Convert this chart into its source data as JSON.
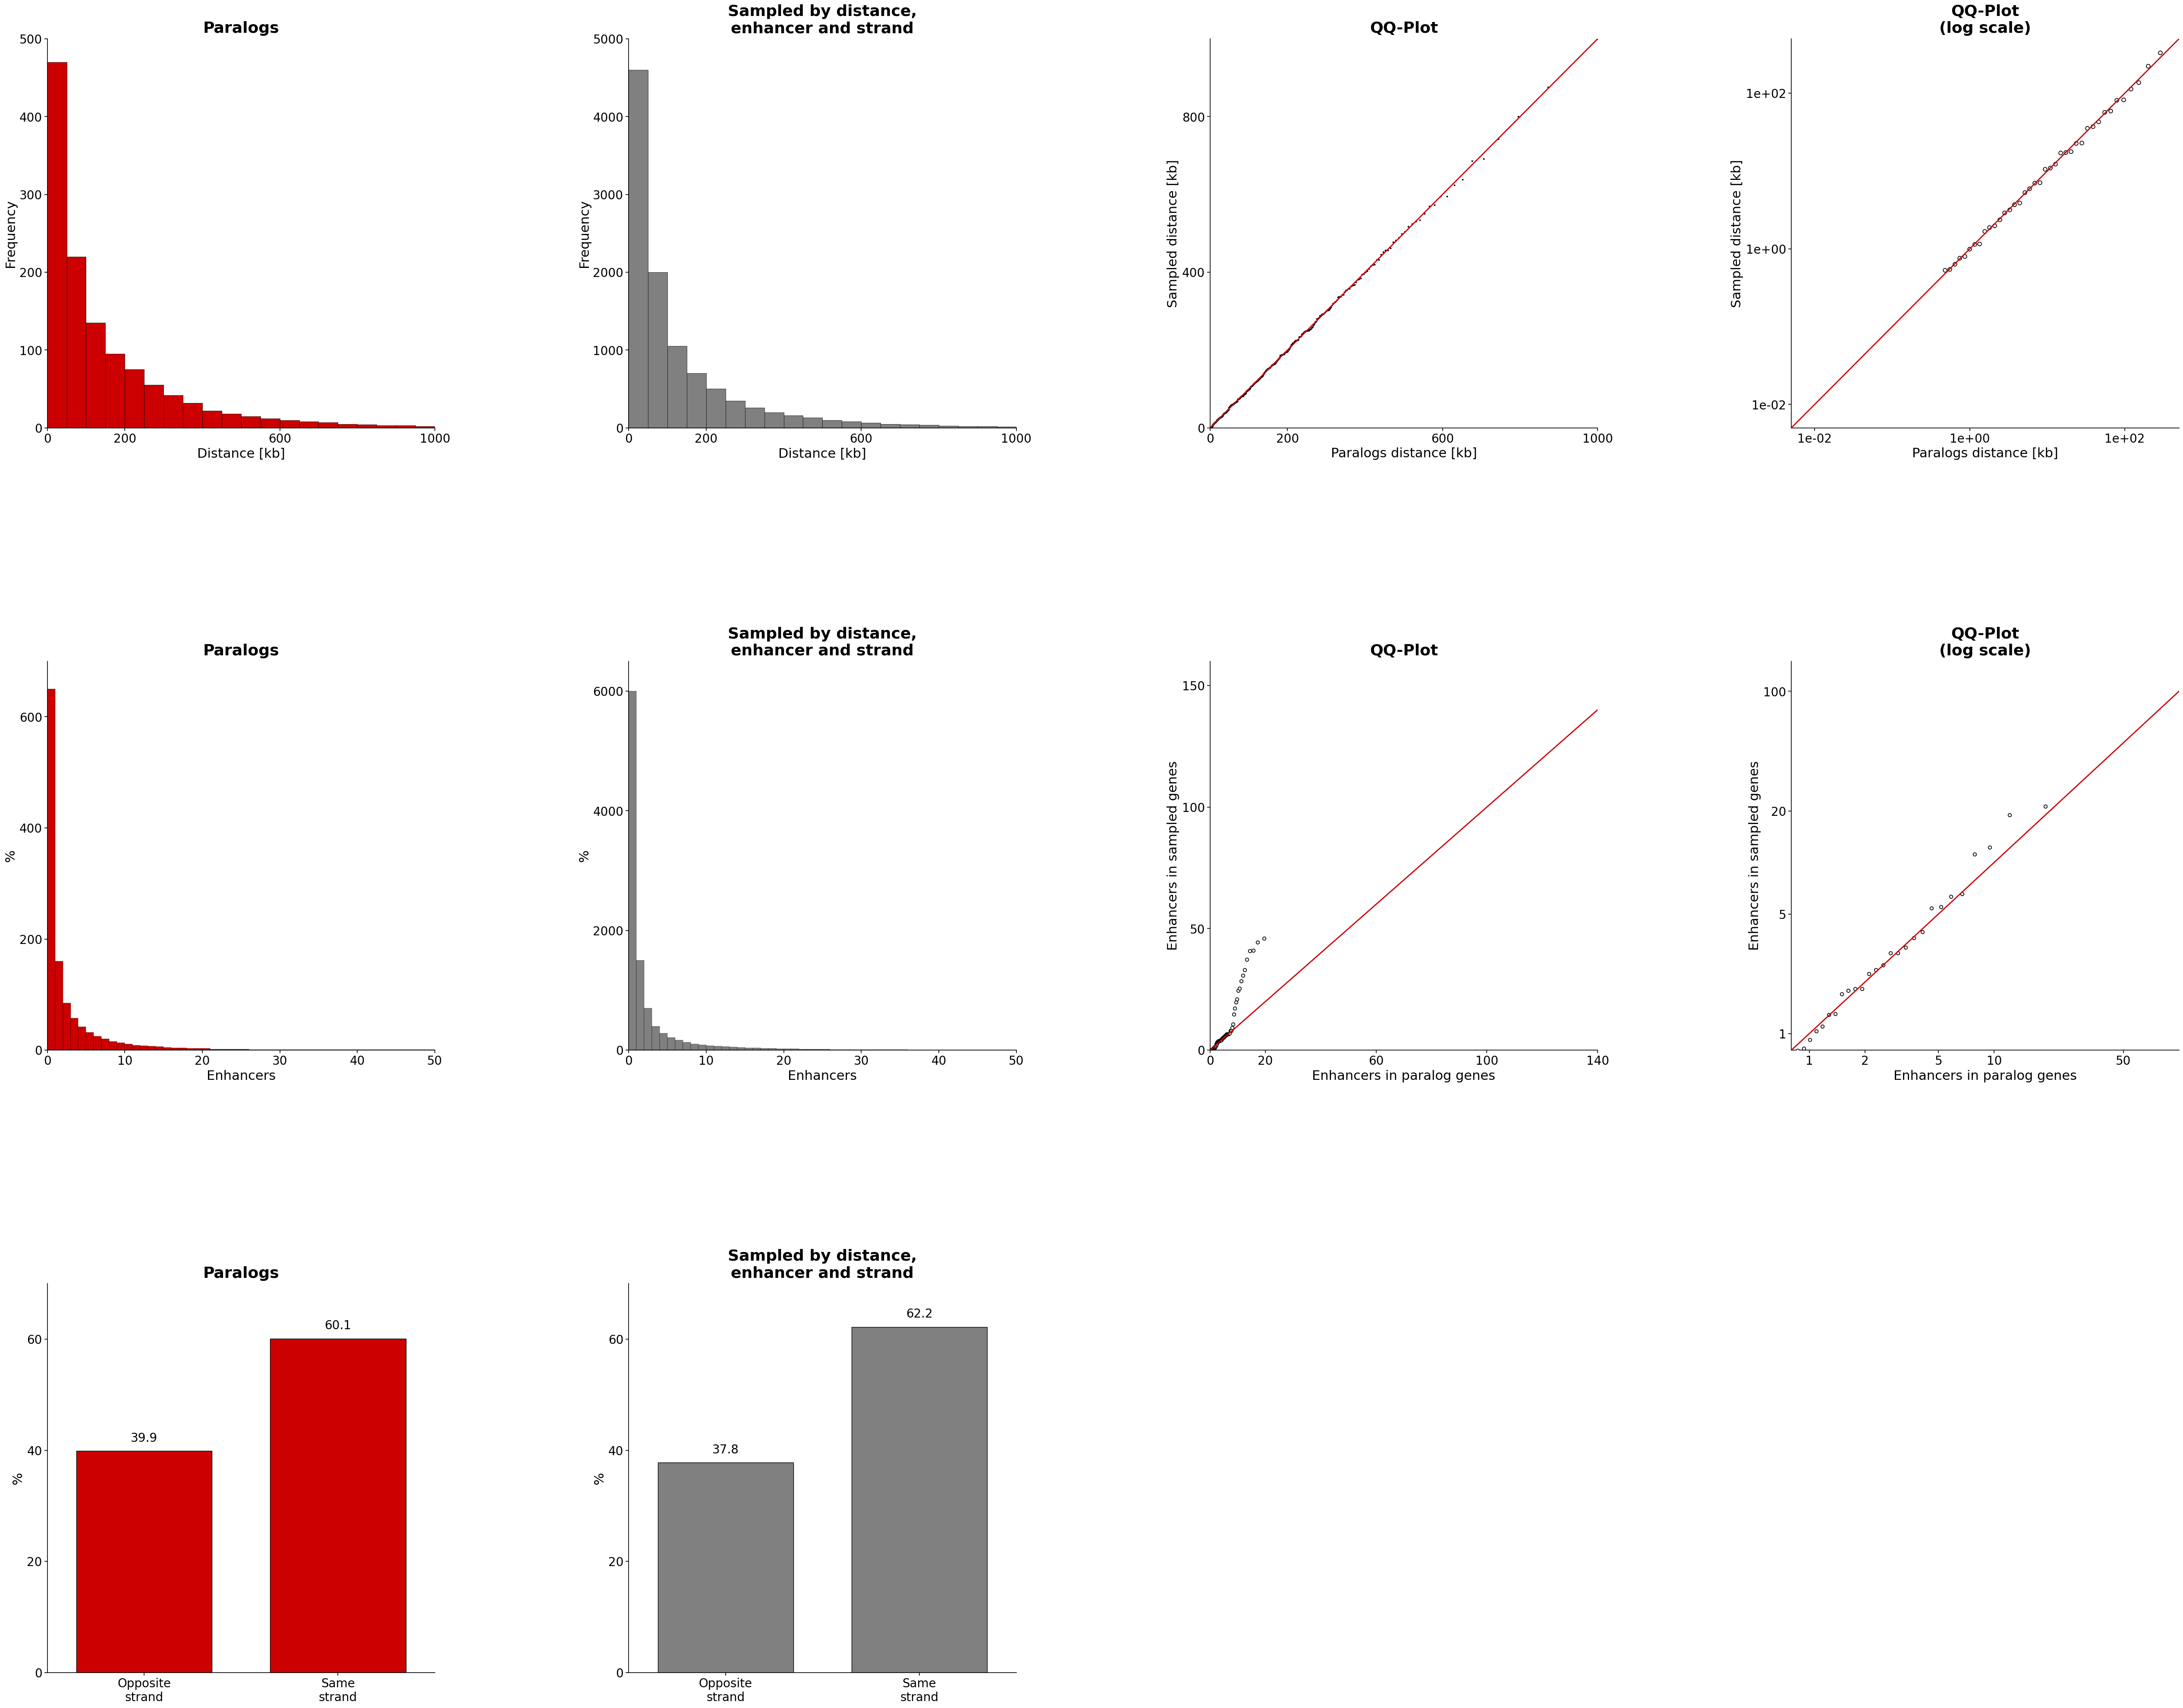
{
  "fig_width": 54.0,
  "fig_height": 40.5,
  "bg_color": "#ffffff",
  "row1_col1_title": "Paralogs",
  "row1_col2_title": "Sampled by distance,\nenhancer and strand",
  "row1_col3_title": "QQ-Plot",
  "row1_col4_title": "QQ-Plot\n(log scale)",
  "row2_col1_title": "Paralogs",
  "row2_col2_title": "Sampled by distance,\nenhancer and strand",
  "row2_col3_title": "QQ-Plot",
  "row2_col4_title": "QQ-Plot\n(log scale)",
  "row3_col1_title": "Paralogs",
  "row3_col2_title": "Sampled by distance,\nenhancer and strand",
  "dist_paralog_hist_values": [
    470,
    220,
    135,
    95,
    75,
    55,
    42,
    32,
    22,
    18,
    15,
    12,
    10,
    8,
    7,
    5,
    4,
    3,
    3,
    2
  ],
  "dist_paralog_hist_edges": [
    0,
    50,
    100,
    150,
    200,
    250,
    300,
    350,
    400,
    450,
    500,
    550,
    600,
    650,
    700,
    750,
    800,
    850,
    900,
    950,
    1000
  ],
  "dist_paralog_color": "#cc0000",
  "dist_paralog_ylabel": "Frequency",
  "dist_paralog_xlabel": "Distance [kb]",
  "dist_paralog_ylim": [
    0,
    500
  ],
  "dist_paralog_xlim": [
    0,
    1000
  ],
  "dist_paralog_yticks": [
    0,
    100,
    200,
    300,
    400,
    500
  ],
  "dist_paralog_xticks": [
    0,
    200,
    600,
    1000
  ],
  "dist_sampled_hist_values": [
    4600,
    2000,
    1050,
    700,
    500,
    350,
    260,
    200,
    160,
    130,
    100,
    80,
    65,
    50,
    45,
    35,
    28,
    22,
    18,
    15
  ],
  "dist_sampled_hist_edges": [
    0,
    50,
    100,
    150,
    200,
    250,
    300,
    350,
    400,
    450,
    500,
    550,
    600,
    650,
    700,
    750,
    800,
    850,
    900,
    950,
    1000
  ],
  "dist_sampled_color": "#808080",
  "dist_sampled_ylabel": "Frequency",
  "dist_sampled_xlabel": "Distance [kb]",
  "dist_sampled_ylim": [
    0,
    5000
  ],
  "dist_sampled_xlim": [
    0,
    1000
  ],
  "dist_sampled_yticks": [
    0,
    1000,
    2000,
    3000,
    4000,
    5000
  ],
  "dist_sampled_xticks": [
    0,
    200,
    600,
    1000
  ],
  "enh_paralog_hist_values": [
    650,
    160,
    85,
    58,
    42,
    32,
    25,
    20,
    16,
    13,
    11,
    9,
    8,
    7,
    6,
    5,
    4,
    4,
    3,
    3,
    3,
    2,
    2,
    2,
    2,
    2,
    1,
    1,
    1,
    1,
    1,
    1,
    1,
    1,
    1,
    1,
    1,
    1,
    1,
    1,
    1,
    1,
    1,
    1,
    1,
    1,
    1,
    1,
    1,
    1
  ],
  "enh_paralog_color": "#cc0000",
  "enh_paralog_ylabel": "%",
  "enh_paralog_xlabel": "Enhancers",
  "enh_paralog_ylim": [
    0,
    700
  ],
  "enh_paralog_xlim": [
    0,
    50
  ],
  "enh_paralog_yticks": [
    0,
    200,
    400,
    600
  ],
  "enh_paralog_xticks": [
    0,
    10,
    20,
    30,
    40,
    50
  ],
  "enh_sampled_hist_values": [
    6000,
    1500,
    700,
    400,
    280,
    210,
    165,
    130,
    105,
    90,
    75,
    65,
    57,
    50,
    44,
    39,
    35,
    31,
    28,
    25,
    22,
    20,
    18,
    16,
    14,
    13,
    12,
    11,
    10,
    9,
    8,
    8,
    7,
    7,
    6,
    6,
    5,
    5,
    5,
    4,
    4,
    4,
    3,
    3,
    3,
    3,
    3,
    2,
    2,
    2
  ],
  "enh_sampled_color": "#808080",
  "enh_sampled_ylabel": "%",
  "enh_sampled_xlabel": "Enhancers",
  "enh_sampled_ylim": [
    0,
    6500
  ],
  "enh_sampled_xlim": [
    0,
    50
  ],
  "enh_sampled_yticks": [
    0,
    2000,
    4000,
    6000
  ],
  "enh_sampled_xticks": [
    0,
    10,
    20,
    30,
    40,
    50
  ],
  "strand_paralog_opposite": 39.9,
  "strand_paralog_same": 60.1,
  "strand_paralog_color": "#cc0000",
  "strand_paralog_ylabel": "%",
  "strand_paralog_xlabel_opposite": "Opposite\nstrand",
  "strand_paralog_xlabel_same": "Same\nstrand",
  "strand_paralog_ylim": [
    0,
    70
  ],
  "strand_paralog_yticks": [
    0,
    20,
    40,
    60
  ],
  "strand_sampled_opposite": 37.8,
  "strand_sampled_same": 62.2,
  "strand_sampled_color": "#808080",
  "strand_sampled_ylabel": "%",
  "strand_sampled_xlabel_opposite": "Opposite\nstrand",
  "strand_sampled_xlabel_same": "Same\nstrand",
  "strand_sampled_ylim": [
    0,
    70
  ],
  "strand_sampled_yticks": [
    0,
    20,
    40,
    60
  ],
  "qq_dist_linear_xlabel": "Paralogs distance [kb]",
  "qq_dist_linear_ylabel": "Sampled distance [kb]",
  "qq_dist_linear_xlim": [
    0,
    1000
  ],
  "qq_dist_linear_ylim": [
    0,
    1000
  ],
  "qq_dist_linear_xticks": [
    0,
    200,
    600,
    1000
  ],
  "qq_dist_linear_yticks": [
    0,
    400,
    800
  ],
  "qq_dist_log_xlabel": "Paralogs distance [kb]",
  "qq_dist_log_ylabel": "Sampled distance [kb]",
  "qq_dist_log_xlim_min": 0.005,
  "qq_dist_log_xlim_max": 500,
  "qq_dist_log_ylim_min": 0.005,
  "qq_dist_log_ylim_max": 500,
  "qq_enh_linear_xlabel": "Enhancers in paralog genes",
  "qq_enh_linear_ylabel": "Enhancers in sampled genes",
  "qq_enh_linear_xlim": [
    0,
    140
  ],
  "qq_enh_linear_ylim": [
    0,
    160
  ],
  "qq_enh_linear_xticks": [
    0,
    20,
    60,
    100,
    140
  ],
  "qq_enh_linear_yticks": [
    0,
    50,
    100,
    150
  ],
  "qq_enh_log_xlabel": "Enhancers in paralog genes",
  "qq_enh_log_ylabel": "Enhancers in sampled genes",
  "qq_enh_log_xlim_min": 0.8,
  "qq_enh_log_xlim_max": 100,
  "qq_enh_log_ylim_min": 0.8,
  "qq_enh_log_ylim_max": 150,
  "red_line_color": "#cc0000",
  "title_fontsize": 26,
  "label_fontsize": 22,
  "tick_fontsize": 20,
  "annotation_fontsize": 20
}
